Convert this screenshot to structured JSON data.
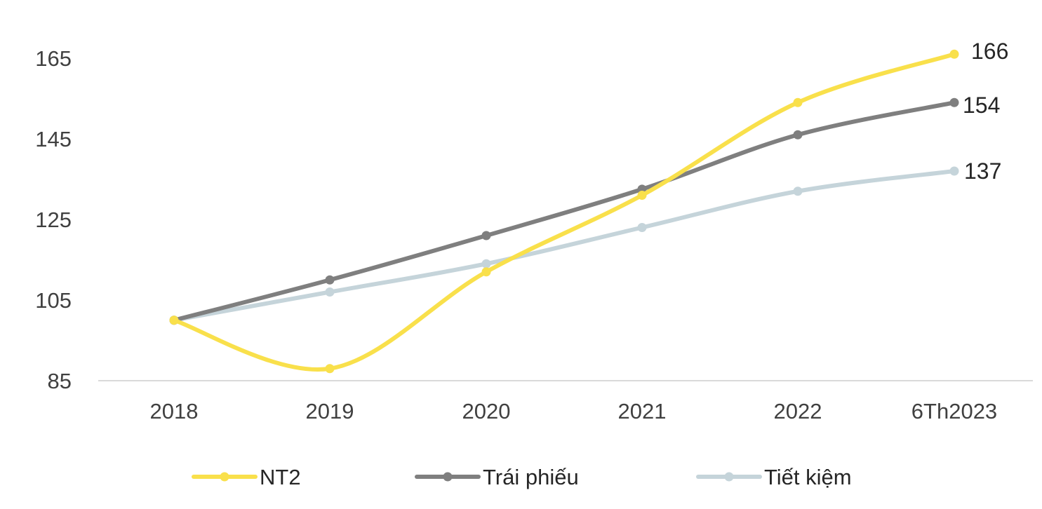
{
  "chart_data": {
    "type": "line",
    "categories": [
      "2018",
      "2019",
      "2020",
      "2021",
      "2022",
      "6Th2023"
    ],
    "series": [
      {
        "name": "NT2",
        "color": "#F9E04B",
        "values": [
          100,
          88,
          112,
          131,
          154,
          166
        ],
        "end_label": "166"
      },
      {
        "name": "Trái phiếu",
        "color": "#7F7F7F",
        "values": [
          100,
          110,
          121,
          132.5,
          146,
          154
        ],
        "end_label": "154"
      },
      {
        "name": "Tiết kiệm",
        "color": "#C5D4DA",
        "values": [
          100,
          107,
          114,
          123,
          132,
          137
        ],
        "end_label": "137"
      }
    ],
    "yticks": [
      "85",
      "105",
      "125",
      "145",
      "165"
    ],
    "ylim": [
      85,
      170
    ],
    "grid": false,
    "legend_position": "bottom",
    "title": "",
    "xlabel": "",
    "ylabel": ""
  }
}
